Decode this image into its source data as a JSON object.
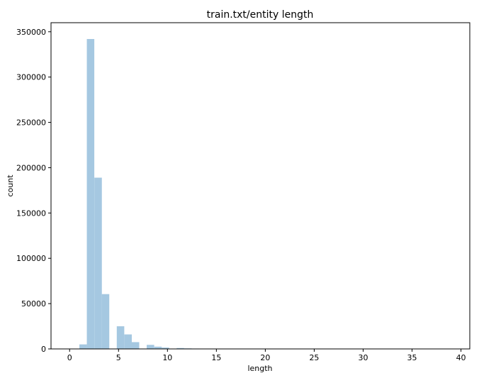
{
  "chart_data": {
    "type": "bar",
    "title": "train.txt/entity length",
    "xlabel": "length",
    "ylabel": "count",
    "xlim": [
      -1.9,
      40.9
    ],
    "ylim": [
      0,
      360000
    ],
    "grid": false,
    "bar_color": "#a5c8e1",
    "bin_width": 0.765,
    "xticks": [
      0,
      5,
      10,
      15,
      20,
      25,
      30,
      35,
      40
    ],
    "yticks": [
      0,
      50000,
      100000,
      150000,
      200000,
      250000,
      300000,
      350000
    ],
    "bins": [
      {
        "x": 1.0,
        "value": 5000
      },
      {
        "x": 1.76,
        "value": 342000
      },
      {
        "x": 2.53,
        "value": 189000
      },
      {
        "x": 3.29,
        "value": 60500
      },
      {
        "x": 4.82,
        "value": 25000
      },
      {
        "x": 5.59,
        "value": 16000
      },
      {
        "x": 6.35,
        "value": 7500
      },
      {
        "x": 7.88,
        "value": 4500
      },
      {
        "x": 8.65,
        "value": 2500
      },
      {
        "x": 9.41,
        "value": 1500
      },
      {
        "x": 10.94,
        "value": 1000
      },
      {
        "x": 11.71,
        "value": 600
      },
      {
        "x": 12.47,
        "value": 400
      },
      {
        "x": 14.0,
        "value": 300
      },
      {
        "x": 14.76,
        "value": 200
      },
      {
        "x": 15.53,
        "value": 120
      }
    ]
  }
}
